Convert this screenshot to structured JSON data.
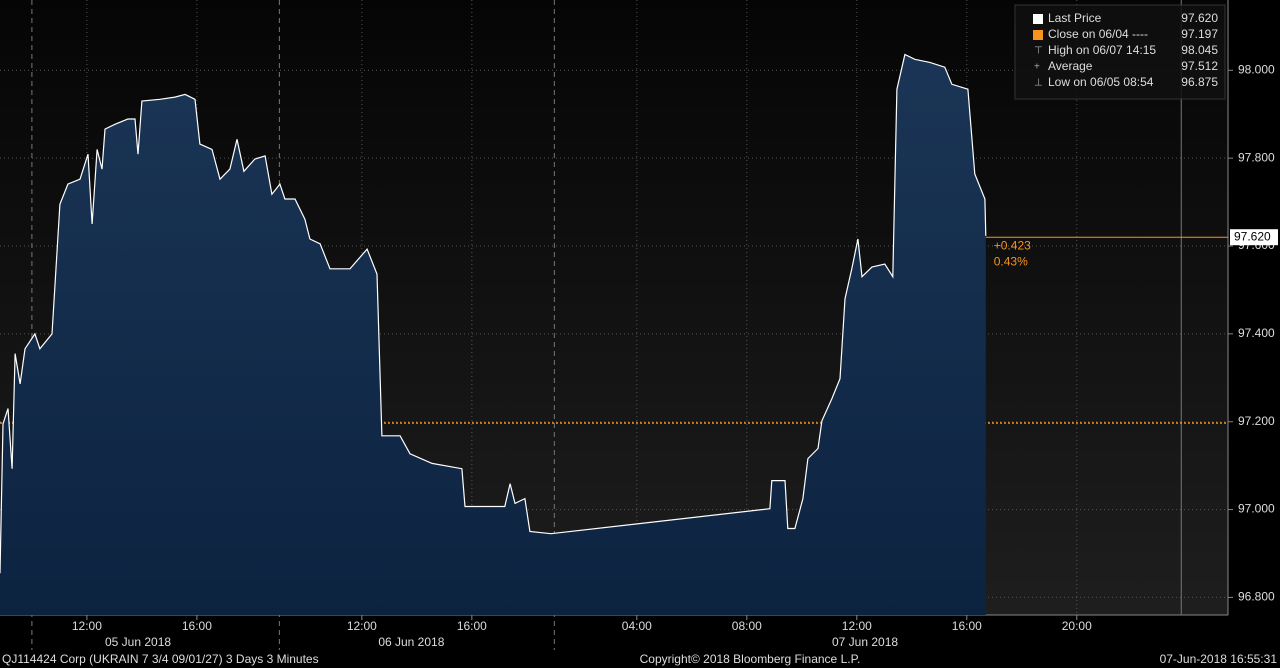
{
  "chart_data": {
    "type": "area",
    "x": [
      8.84,
      8.95,
      9.13,
      9.28,
      9.39,
      9.57,
      9.75,
      10.11,
      10.29,
      10.73,
      11.02,
      11.31,
      11.75,
      12.04,
      12.19,
      12.37,
      12.55,
      12.66,
      13.02,
      13.49,
      13.75,
      13.86,
      14.0,
      14.66,
      15.2,
      15.57,
      15.93,
      16.11,
      16.55,
      16.84,
      17.2,
      17.46,
      17.71,
      18.11,
      18.48,
      18.73,
      19.02,
      19.2,
      19.57,
      19.93,
      20.11,
      20.48,
      20.84,
      21.57,
      22.19,
      22.55,
      22.73,
      23.39,
      23.75,
      24.55,
      25.64,
      25.75,
      27.2,
      27.39,
      27.57,
      27.93,
      28.11,
      28.88,
      36.84,
      36.91,
      37.39,
      37.49,
      37.75,
      38.04,
      38.22,
      38.59,
      38.73,
      39.09,
      39.39,
      39.57,
      39.82,
      40.04,
      40.19,
      40.55,
      41.02,
      41.31,
      41.46,
      41.75,
      42.11,
      42.66,
      43.2,
      43.46,
      44.04,
      44.29,
      44.66,
      44.69
    ],
    "series": [
      {
        "name": "Last Price",
        "color": "#ffffff",
        "values": [
          96.855,
          97.195,
          97.23,
          97.093,
          97.355,
          97.286,
          97.366,
          97.4,
          97.366,
          97.4,
          97.695,
          97.741,
          97.752,
          97.809,
          97.65,
          97.82,
          97.775,
          97.866,
          97.877,
          97.889,
          97.889,
          97.809,
          97.93,
          97.934,
          97.939,
          97.945,
          97.934,
          97.832,
          97.82,
          97.752,
          97.775,
          97.843,
          97.77,
          97.798,
          97.805,
          97.718,
          97.741,
          97.707,
          97.707,
          97.661,
          97.616,
          97.605,
          97.548,
          97.548,
          97.593,
          97.536,
          97.168,
          97.168,
          97.127,
          97.105,
          97.093,
          97.007,
          97.007,
          97.059,
          97.014,
          97.025,
          96.95,
          96.945,
          97.002,
          97.066,
          97.066,
          96.957,
          96.957,
          97.025,
          97.116,
          97.139,
          97.202,
          97.252,
          97.298,
          97.48,
          97.548,
          97.616,
          97.53,
          97.552,
          97.559,
          97.53,
          97.957,
          98.036,
          98.025,
          98.018,
          98.007,
          97.968,
          97.957,
          97.764,
          97.707,
          97.623
        ]
      }
    ],
    "xlim": [
      8.84,
      53.5
    ],
    "xticks": [
      {
        "value": 12,
        "label": "12:00"
      },
      {
        "value": 16,
        "label": "16:00"
      },
      {
        "value": 22,
        "label": "12:00"
      },
      {
        "value": 26,
        "label": "16:00"
      },
      {
        "value": 32,
        "label": "04:00"
      },
      {
        "value": 36,
        "label": "08:00"
      },
      {
        "value": 40,
        "label": "12:00"
      },
      {
        "value": 44,
        "label": "16:00"
      },
      {
        "value": 48,
        "label": "20:00"
      }
    ],
    "date_ticks": [
      {
        "value": 13.86,
        "label": "05 Jun 2018"
      },
      {
        "value": 23.8,
        "label": "06 Jun 2018"
      },
      {
        "value": 40.3,
        "label": "07 Jun 2018"
      }
    ],
    "separators": [
      10,
      19,
      29
    ],
    "now_line": 51.8,
    "ylim": [
      96.76,
      98.16
    ],
    "yticks": [
      {
        "value": 96.8,
        "label": "96.800"
      },
      {
        "value": 97.0,
        "label": "97.000"
      },
      {
        "value": 97.2,
        "label": "97.200"
      },
      {
        "value": 97.4,
        "label": "97.400"
      },
      {
        "value": 97.6,
        "label": "97.600"
      },
      {
        "value": 97.8,
        "label": "97.800"
      },
      {
        "value": 98.0,
        "label": "98.000"
      }
    ],
    "grid": true,
    "close": 97.197,
    "last_price": {
      "value": 97.62,
      "label": "97.620"
    },
    "change": "+0.423",
    "change_pct": "0.43%",
    "legend": [
      {
        "label": "Last Price",
        "value": "97.620"
      },
      {
        "label": "Close on 06/04 ----",
        "value": "97.197"
      },
      {
        "label": "High on 06/07 14:15",
        "value": "98.045"
      },
      {
        "label": "Average",
        "value": "97.512"
      },
      {
        "label": "Low on 06/05 08:54",
        "value": "96.875"
      }
    ]
  },
  "footer": {
    "left": "QJ114424 Corp (UKRAIN 7 3/4 09/01/27) 3 Days 3 Minutes",
    "center": "Copyright© 2018 Bloomberg Finance L.P.",
    "right": "07-Jun-2018 16:55:31"
  }
}
